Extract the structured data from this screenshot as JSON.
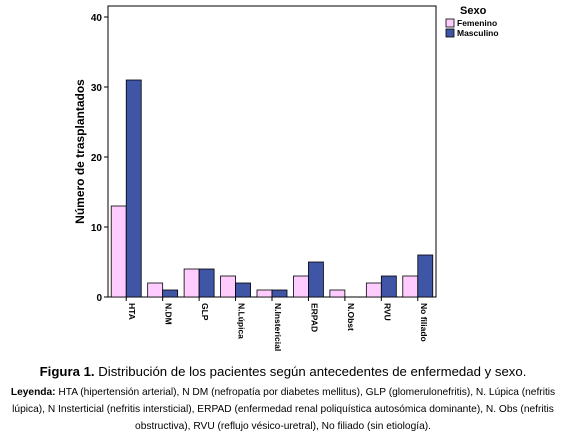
{
  "chart_data": {
    "type": "bar",
    "ylabel": "Número de trasplantados",
    "xlabel": "",
    "ylim": [
      0,
      40
    ],
    "yticks": [
      0,
      10,
      20,
      30,
      40
    ],
    "categories": [
      "HTA",
      "N.DM",
      "GLP",
      "N.Lúpica",
      "N.Instericial",
      "ERPAD",
      "N.Obst",
      "RVU",
      "No filiado"
    ],
    "legend_title": "Sexo",
    "legend_position": "top-right",
    "grid": false,
    "series": [
      {
        "name": "Femenino",
        "color": "#FFCCFF",
        "values": [
          13,
          2,
          4,
          3,
          1,
          3,
          1,
          2,
          3
        ]
      },
      {
        "name": "Masculino",
        "color": "#3F55A6",
        "values": [
          31,
          1,
          4,
          2,
          1,
          5,
          0,
          3,
          6
        ]
      }
    ]
  },
  "caption": {
    "label": "Figura 1.",
    "text": " Distribución de los pacientes según antecedentes de enfermedad y sexo."
  },
  "legend_note": {
    "label": "Leyenda:",
    "text": " HTA (hipertensión arterial), N DM (nefropatía por diabetes mellitus), GLP (glomerulonefritis), N. Lúpica (nefritis lúpica), N Insterticial (nefritis intersticial), ERPAD (enfermedad renal poliquística autosómica dominante), N. Obs (nefritis obstructiva), RVU (reflujo vésico-uretral), No filiado (sin etiología)."
  }
}
